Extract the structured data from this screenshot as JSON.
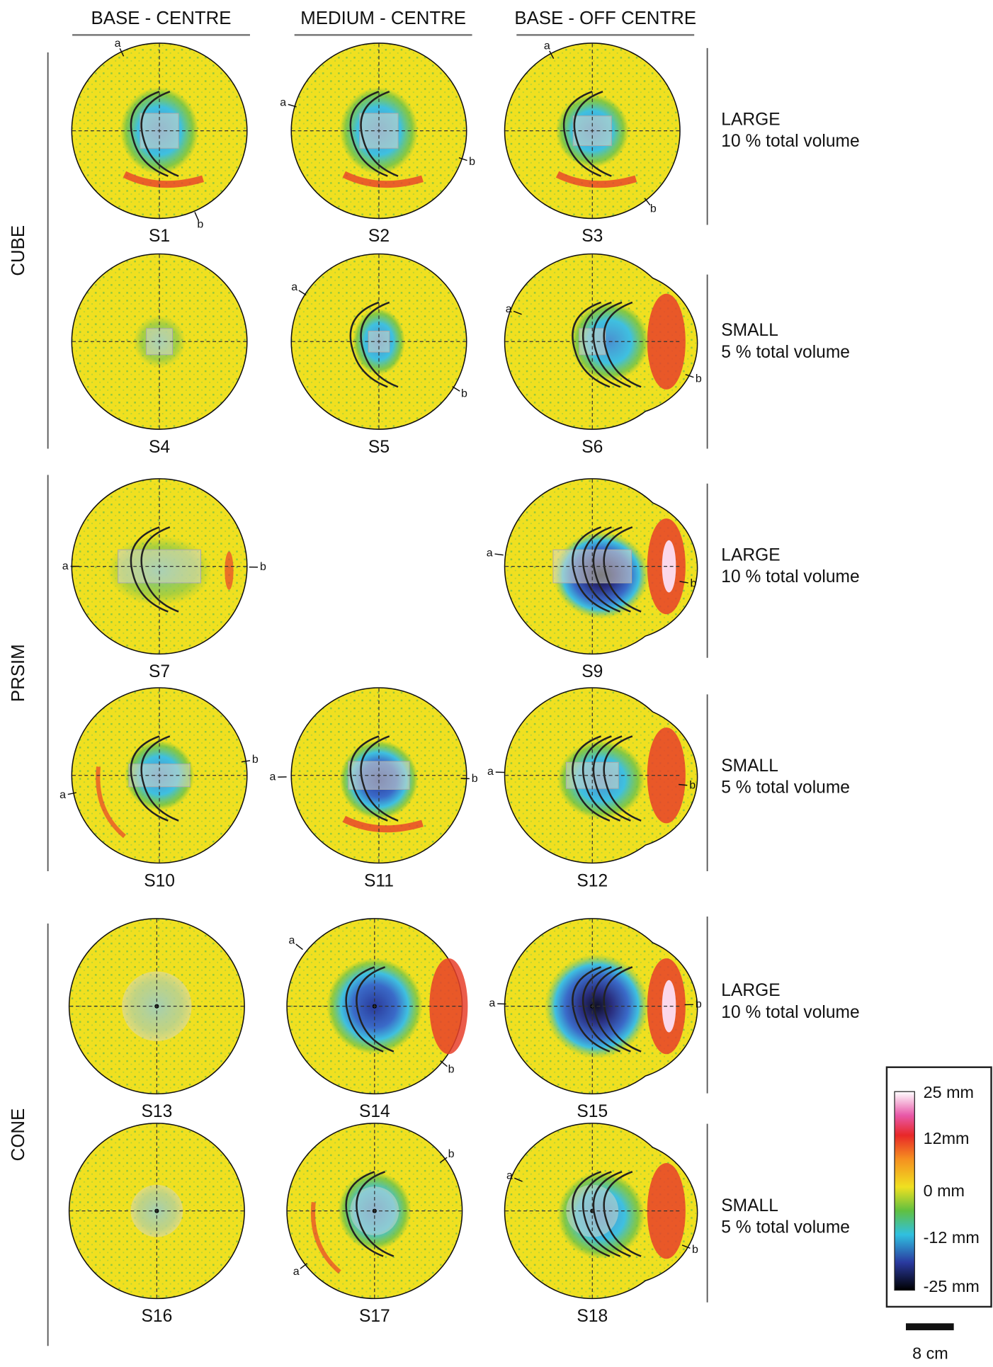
{
  "columns": [
    "BASE - CENTRE",
    "MEDIUM - CENTRE",
    "BASE - OFF CENTRE"
  ],
  "groups": [
    "CUBE",
    "PRSIM",
    "CONE"
  ],
  "row_notes": [
    {
      "size": "LARGE",
      "volume": "10 % total volume"
    },
    {
      "size": "SMALL",
      "volume": "5 % total volume"
    },
    {
      "size": "LARGE",
      "volume": "10 % total volume"
    },
    {
      "size": "SMALL",
      "volume": "5 % total volume"
    },
    {
      "size": "LARGE",
      "volume": "10 % total volume"
    },
    {
      "size": "SMALL",
      "volume": "5 % total volume"
    }
  ],
  "panels": [
    {
      "label": "S1",
      "a": "a",
      "b": "b"
    },
    {
      "label": "S2",
      "a": "a",
      "b": "b"
    },
    {
      "label": "S3",
      "a": "a",
      "b": "b"
    },
    {
      "label": "S4"
    },
    {
      "label": "S5",
      "a": "a",
      "b": "b"
    },
    {
      "label": "S6",
      "a": "a",
      "b": "b"
    },
    {
      "label": "S7",
      "a": "a",
      "b": "b"
    },
    {
      "label": "S9",
      "a": "a",
      "b": "b"
    },
    {
      "label": "S10",
      "a": "a",
      "b": "b"
    },
    {
      "label": "S11",
      "a": "a",
      "b": "b"
    },
    {
      "label": "S12",
      "a": "a",
      "b": "b"
    },
    {
      "label": "S13"
    },
    {
      "label": "S14",
      "a": "a",
      "b": "b"
    },
    {
      "label": "S15",
      "a": "a",
      "b": "b"
    },
    {
      "label": "S16"
    },
    {
      "label": "S17",
      "a": "a",
      "b": "b"
    },
    {
      "label": "S18",
      "a": "a",
      "b": "b"
    }
  ],
  "colorbar": {
    "labels": [
      "25 mm",
      "12mm",
      "0 mm",
      "-12 mm",
      "-25 mm"
    ]
  },
  "scale_bar": "8 cm"
}
